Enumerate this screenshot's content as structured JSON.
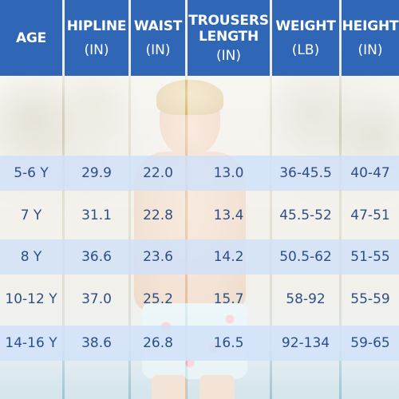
{
  "headers": [
    {
      "line1": "AGE",
      "line2": "",
      "unit": ""
    },
    {
      "line1": "HIPLINE",
      "line2": "",
      "unit": "(IN)"
    },
    {
      "line1": "WAIST",
      "line2": "",
      "unit": "(IN)"
    },
    {
      "line1": "TROUSERS",
      "line2": "LENGTH",
      "unit": "(IN)"
    },
    {
      "line1": "WEIGHT",
      "line2": "",
      "unit": "(LB)"
    },
    {
      "line1": "HEIGHT",
      "line2": "",
      "unit": "(IN)"
    }
  ],
  "rows": [
    [
      "5-6 Y",
      "29.9",
      "22.0",
      "13.0",
      "36-45.5",
      "40-47"
    ],
    [
      "7 Y",
      "31.1",
      "22.8",
      "13.4",
      "45.5-52",
      "47-51"
    ],
    [
      "8 Y",
      "36.6",
      "23.6",
      "14.2",
      "50.5-62",
      "51-55"
    ],
    [
      "10-12 Y",
      "37.0",
      "25.2",
      "15.7",
      "58-92",
      "55-59"
    ],
    [
      "14-16 Y",
      "38.6",
      "26.8",
      "16.5",
      "92-134",
      "59-65"
    ]
  ],
  "colors": {
    "header_bg": "#2f66b6",
    "header_text": "#ffffff",
    "cell_text": "#2c4f86",
    "row_band": "#cfe1f9"
  },
  "photo": {
    "subject": "boy wearing flamingo-print swim shorts by a pool"
  }
}
